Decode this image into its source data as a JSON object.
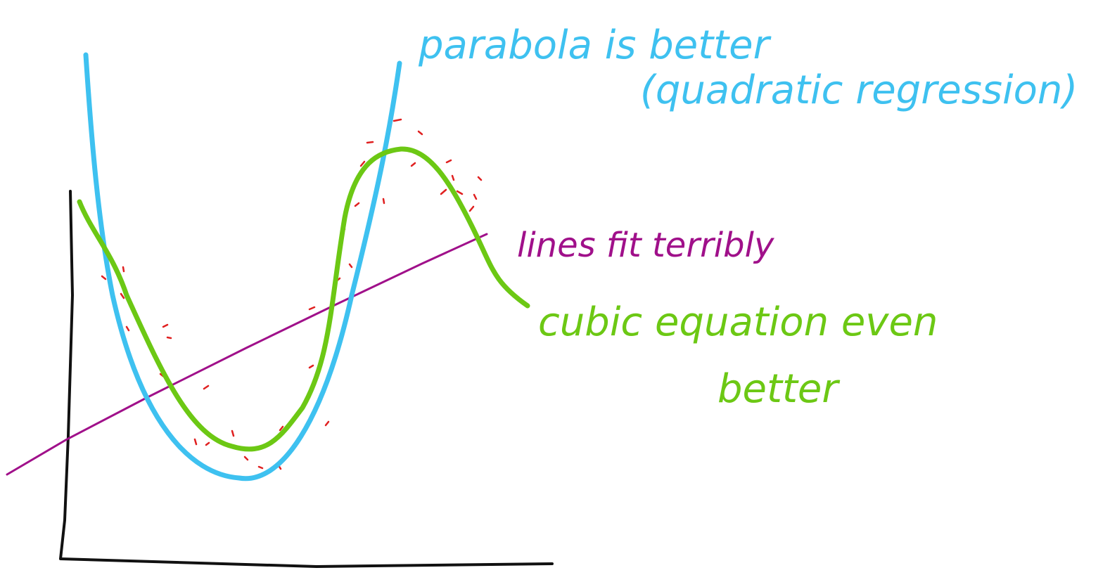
{
  "annotations": {
    "parabola": "parabola is better",
    "quadratic": "(quadratic regression)",
    "line": "lines fit terribly",
    "cubic": "cubic equation even",
    "cubic_better": "better"
  }
}
